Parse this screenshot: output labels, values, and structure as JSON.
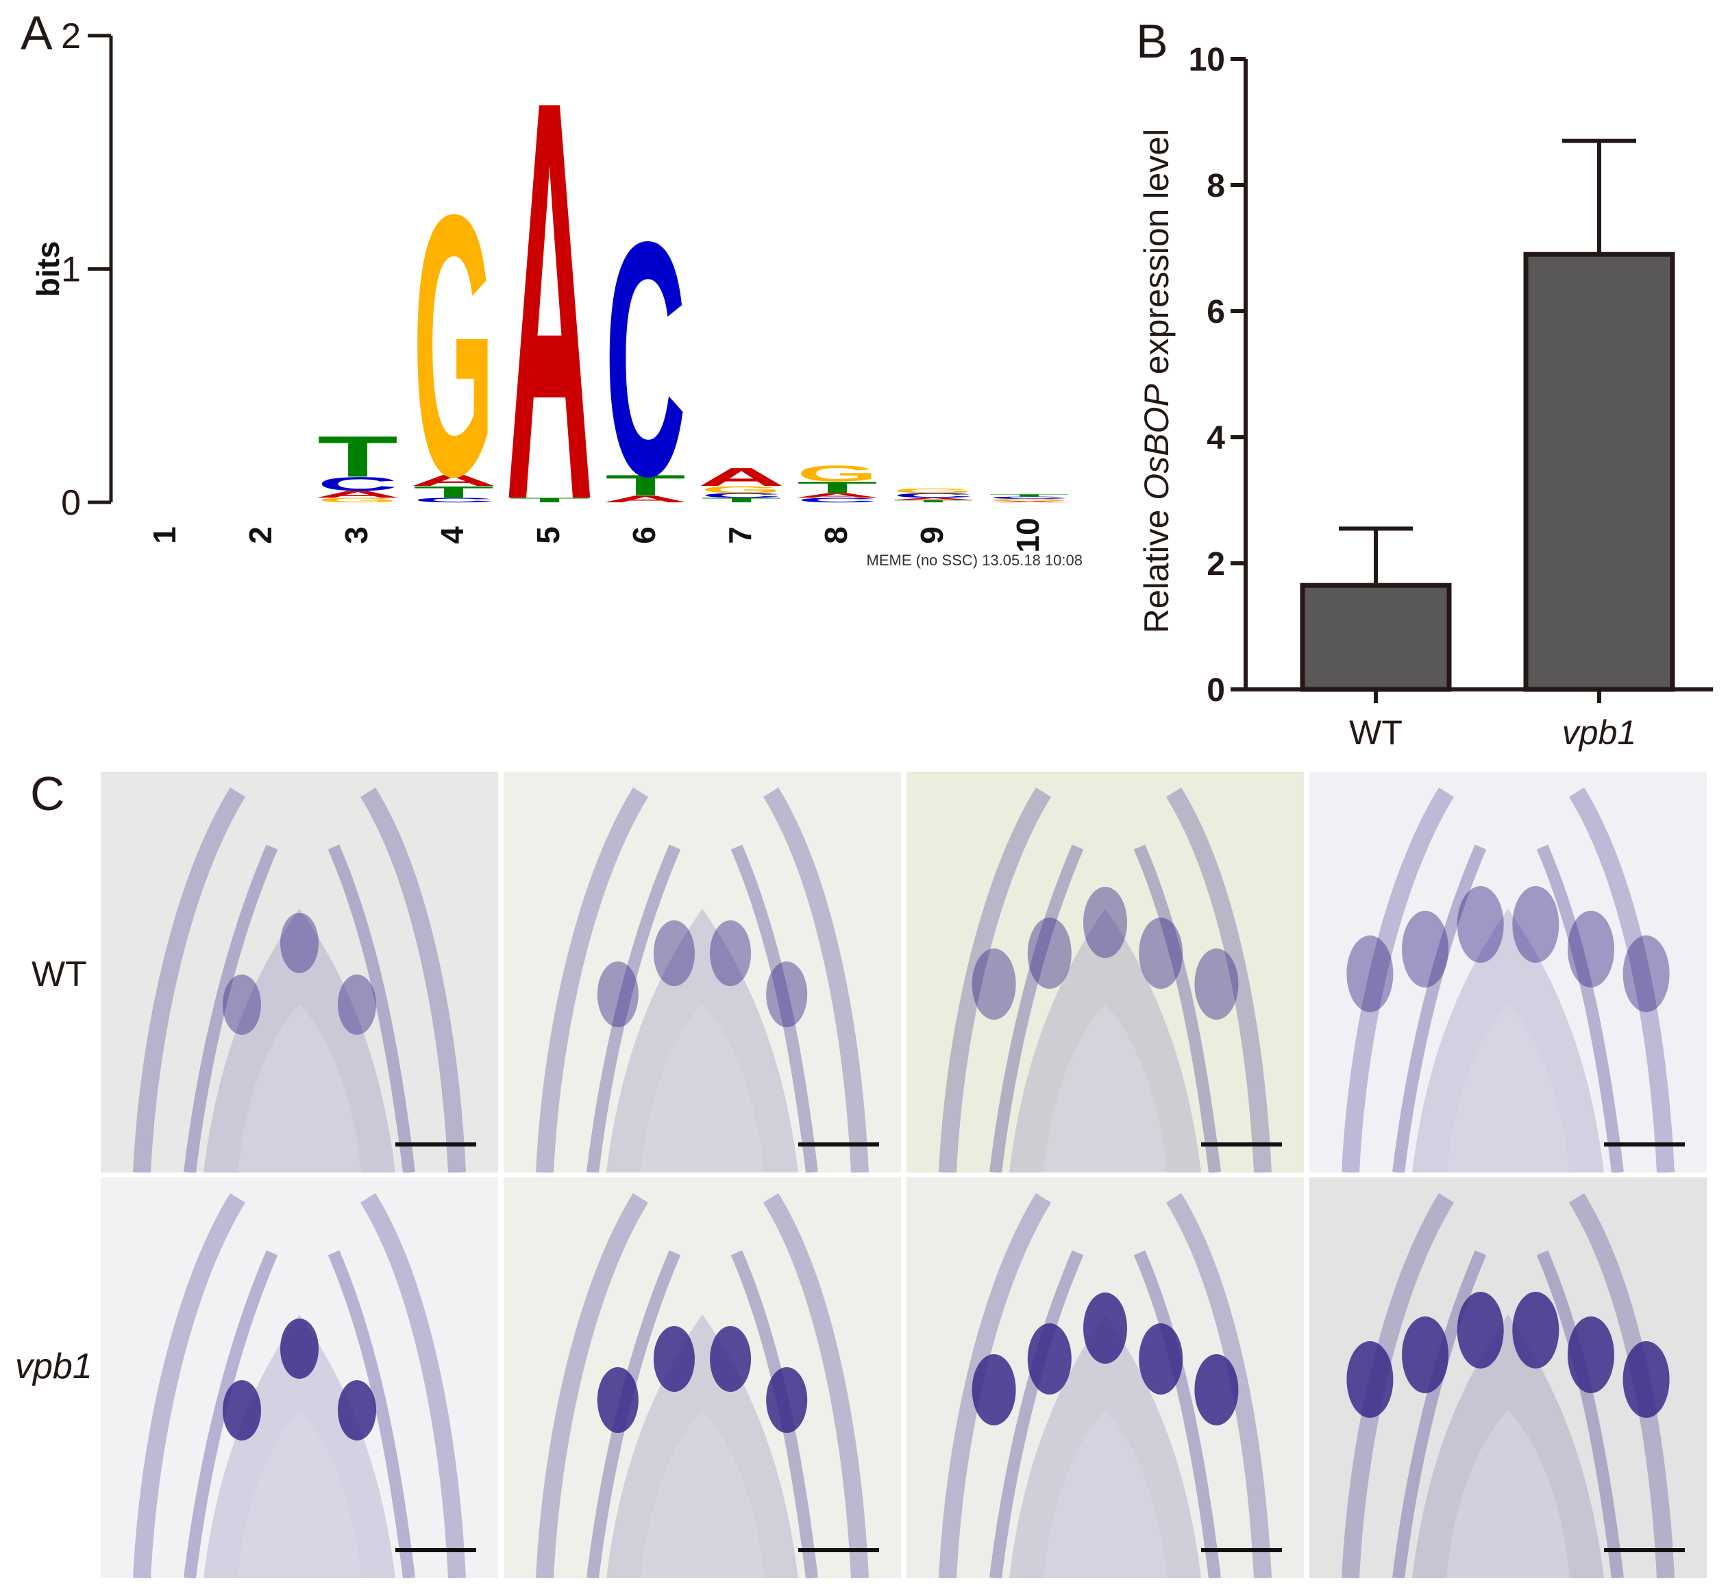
{
  "panels": {
    "A": {
      "label": "A"
    },
    "B": {
      "label": "B"
    },
    "C": {
      "label": "C"
    }
  },
  "chart_data": [
    {
      "type": "sequence-logo",
      "panel": "A",
      "ylabel": "bits",
      "ylim": [
        0,
        2
      ],
      "yticks": [
        "0",
        "1",
        "2"
      ],
      "positions": [
        "1",
        "2",
        "3",
        "4",
        "5",
        "6",
        "7",
        "8",
        "9",
        "10"
      ],
      "footer": "MEME (no SSC) 13.05.18 10:08",
      "nucleotide_colors": {
        "A": "#cc0000",
        "C": "#0000cc",
        "G": "#ffb300",
        "T": "#008000"
      },
      "stacks": [
        {
          "pos": "1",
          "letters": []
        },
        {
          "pos": "2",
          "letters": []
        },
        {
          "pos": "3",
          "letters": [
            {
              "l": "G",
              "h": 0.02
            },
            {
              "l": "A",
              "h": 0.03
            },
            {
              "l": "C",
              "h": 0.06
            },
            {
              "l": "T",
              "h": 0.18
            }
          ]
        },
        {
          "pos": "4",
          "letters": [
            {
              "l": "C",
              "h": 0.02
            },
            {
              "l": "T",
              "h": 0.05
            },
            {
              "l": "A",
              "h": 0.05
            },
            {
              "l": "G",
              "h": 1.15
            }
          ]
        },
        {
          "pos": "5",
          "letters": [
            {
              "l": "T",
              "h": 0.02
            },
            {
              "l": "A",
              "h": 1.76
            }
          ]
        },
        {
          "pos": "6",
          "letters": [
            {
              "l": "A",
              "h": 0.03
            },
            {
              "l": "T",
              "h": 0.09
            },
            {
              "l": "C",
              "h": 1.03
            }
          ]
        },
        {
          "pos": "7",
          "letters": [
            {
              "l": "T",
              "h": 0.02
            },
            {
              "l": "C",
              "h": 0.02
            },
            {
              "l": "G",
              "h": 0.03
            },
            {
              "l": "A",
              "h": 0.08
            }
          ]
        },
        {
          "pos": "8",
          "letters": [
            {
              "l": "C",
              "h": 0.02
            },
            {
              "l": "A",
              "h": 0.02
            },
            {
              "l": "T",
              "h": 0.05
            },
            {
              "l": "G",
              "h": 0.07
            }
          ]
        },
        {
          "pos": "9",
          "letters": [
            {
              "l": "T",
              "h": 0.01
            },
            {
              "l": "A",
              "h": 0.01
            },
            {
              "l": "C",
              "h": 0.02
            },
            {
              "l": "G",
              "h": 0.02
            }
          ]
        },
        {
          "pos": "10",
          "letters": [
            {
              "l": "A",
              "h": 0.005
            },
            {
              "l": "G",
              "h": 0.01
            },
            {
              "l": "C",
              "h": 0.01
            },
            {
              "l": "T",
              "h": 0.01
            }
          ]
        }
      ]
    },
    {
      "type": "bar",
      "panel": "B",
      "categories": [
        "WT",
        "vpb1"
      ],
      "italic_categories": [
        false,
        true
      ],
      "values": [
        1.65,
        6.9
      ],
      "errors": [
        0.9,
        1.8
      ],
      "ylabel_prefix": "Relative ",
      "ylabel_gene": "OsBOP",
      "ylabel_suffix": " expression level",
      "ylim": [
        0,
        10
      ],
      "yticks": [
        "0",
        "2",
        "4",
        "6",
        "8",
        "10"
      ],
      "bar_color": "#595757",
      "edge_color": "#231815"
    }
  ],
  "figure_c": {
    "rows": [
      {
        "label": "WT",
        "italic": false
      },
      {
        "label": "vpb1",
        "italic": true
      }
    ],
    "columns": 4,
    "stain_color": "#3a2c8a",
    "background_colors": [
      "#e8e8e6",
      "#eef0ea",
      "#e9eedf",
      "#f2f0f4",
      "#f1f2f3",
      "#eef0ea",
      "#eceee9",
      "#e3e3e3"
    ]
  }
}
